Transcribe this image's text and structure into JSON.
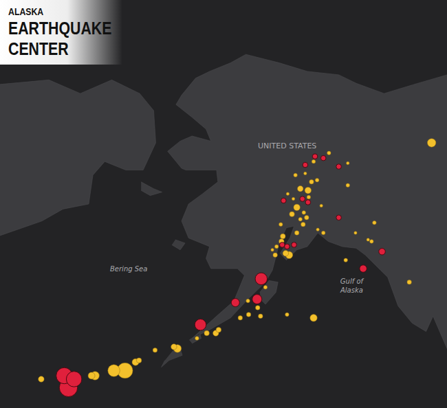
{
  "chart_data": {
    "type": "bubble",
    "logo": [
      "ALASKA",
      "EARTHQUAKE",
      "CENTER"
    ],
    "annotations": [
      {
        "lines": [
          "UNITED STATES"
        ],
        "x": -150.9,
        "y": 65.9
      },
      {
        "lines": [
          "Bering Sea"
        ],
        "x": -173.6,
        "y": 58.7
      },
      {
        "lines": [
          "Gulf of",
          "Alaska"
        ],
        "x": -141.6,
        "y": 57.7
      }
    ],
    "xlim": [
      -192,
      -128
    ],
    "ylim": [
      50.5,
      74.5
    ],
    "xticks": [],
    "yticks": [],
    "tick_labels": false,
    "grid": false,
    "series": [
      {
        "type": "area",
        "color": "#3c3c3f",
        "x": [
          -125,
          -128,
          -133,
          -137,
          -141,
          -143.5,
          -148,
          -152,
          -156.8,
          -159,
          -162,
          -164,
          -166,
          -166.8,
          -164.5,
          -162.5,
          -161.8,
          -164.5,
          -166.2,
          -168,
          -166,
          -165.4,
          -161,
          -160.8,
          -163,
          -165,
          -166,
          -165,
          -162,
          -162.5,
          -161.8,
          -158,
          -157,
          -158.5,
          -161,
          -163.5,
          -164.5,
          -162,
          -159,
          -156.5,
          -154,
          -153,
          -152,
          -151,
          -149.9,
          -150.5,
          -151.9,
          -151,
          -149.5,
          -148,
          -146.5,
          -145,
          -143,
          -141,
          -139.7,
          -137.5,
          -136.5,
          -135,
          -133,
          -131,
          -130,
          -128,
          -125,
          null,
          -154.8,
          -153.5,
          -152.2,
          -152.5,
          -154,
          -154.7,
          null,
          -193,
          -185,
          -180.5,
          -176,
          -172,
          -170,
          -169.7,
          -171.5,
          -174,
          -177,
          -178.7,
          -179.3,
          -183,
          -186,
          -193,
          null,
          -171.8,
          -170,
          -168.8,
          -170.5,
          -171.8,
          null,
          -166.9,
          -165.5,
          -166.2,
          -167.4,
          null,
          -164.9,
          -163.4,
          -163.2,
          -164.5,
          null,
          -167.2,
          -166.2,
          -165.9,
          -167.8,
          -168.9,
          -168.4
        ],
        "y": [
          70.2,
          70.1,
          69.5,
          69,
          69.6,
          70.1,
          70.3,
          70.8,
          71.3,
          70.8,
          70.3,
          69.9,
          68.9,
          68.35,
          67.6,
          66.9,
          66.2,
          66.5,
          66.2,
          65.6,
          64.6,
          64.5,
          64.5,
          63.8,
          63.1,
          62.5,
          61.5,
          60.5,
          60,
          59.3,
          58.7,
          58.7,
          58.3,
          56.8,
          55.9,
          55,
          54.6,
          55.1,
          55.8,
          56.9,
          57.9,
          58.6,
          60.2,
          61.1,
          61.2,
          60.5,
          59.6,
          59.2,
          59.8,
          60,
          60.8,
          60.3,
          60,
          59.9,
          59.5,
          58.6,
          58.2,
          56.5,
          55.5,
          55,
          55.9,
          54,
          52,
          null,
          57.3,
          58,
          57.9,
          57.3,
          56.6,
          56.9,
          null,
          69.5,
          69.8,
          69,
          69.8,
          69,
          68,
          66.1,
          64.5,
          64.5,
          65,
          64.2,
          62.5,
          62.2,
          61.5,
          60.5,
          null,
          63.8,
          63.4,
          63.2,
          63,
          63.3,
          null,
          60.4,
          60.2,
          59.8,
          60.1,
          null,
          54.5,
          54.9,
          54.6,
          54.3,
          null,
          53.9,
          54,
          53.6,
          53.3,
          52.9,
          53.3
        ]
      },
      {
        "type": "bubble",
        "color": "#f3c02c",
        "x": [
          -174.1,
          -175.7,
          -178.4,
          -178.9,
          -186.1,
          -172.6,
          -172.1,
          -166.6,
          -167.1,
          -169.8,
          -162.4,
          -161.1,
          -160.7,
          -163.8,
          -157.6,
          -156.4,
          -154.7,
          -147.1,
          -150.9,
          -155.1,
          -154,
          -156.5,
          -133.4,
          -130.2,
          -142.5,
          -138.4,
          -138.8,
          -142.2,
          -149,
          -147.9,
          -149.5,
          -150.2,
          -150.6,
          -151.1,
          -151.7,
          -151.5,
          -149.5,
          -148.6,
          -147.4,
          -146.6,
          -147.1,
          -144.9,
          -142.2,
          -149.7,
          -152.6,
          -148.1,
          -145.7,
          -141.1,
          -139.3,
          -148.5,
          -149,
          -150,
          -148.3,
          -147.8,
          -146,
          -150.8,
          -151.8,
          -152.4,
          -153,
          -146.5
        ],
        "y": [
          52.7,
          52.7,
          52.4,
          52.4,
          52.2,
          53.2,
          53.3,
          54,
          54.1,
          53.9,
          54.9,
          54.9,
          55.1,
          54.6,
          55.8,
          56,
          55.9,
          55.8,
          56,
          56.4,
          57.6,
          56.8,
          57.9,
          66.1,
          59.2,
          61.4,
          60.3,
          63.6,
          63.4,
          63.3,
          62.3,
          61.9,
          59.5,
          59.6,
          60.3,
          60.6,
          60.8,
          61.3,
          63.8,
          63.9,
          65,
          65.5,
          64.9,
          64.2,
          59.5,
          61.7,
          60.8,
          60.8,
          60.4,
          62,
          61.6,
          62.8,
          64.3,
          62.9,
          62.4,
          63.1,
          61.3,
          60,
          59.8,
          61
        ],
        "magnitude": [
          6,
          5,
          4,
          3.5,
          3.2,
          3.5,
          3,
          3.8,
          3.2,
          2.8,
          3,
          3.2,
          3,
          2.6,
          2.8,
          2.8,
          2.8,
          3.6,
          2.6,
          2.8,
          2.6,
          2.6,
          2.8,
          4,
          2.6,
          2.6,
          2.6,
          2.6,
          3.2,
          3.4,
          3.4,
          3,
          3.6,
          3.2,
          3,
          3,
          2.8,
          2.8,
          2.8,
          2.6,
          2.6,
          2.6,
          2.4,
          2.6,
          2.8,
          2.8,
          2.6,
          2.4,
          2.4,
          2.6,
          2.6,
          2.4,
          2.4,
          2.6,
          2.4,
          2.4,
          2.6,
          2.6,
          2.4,
          2.4
        ]
      },
      {
        "type": "bubble",
        "color": "#e0203c",
        "x": [
          -182.2,
          -182.8,
          -181.4,
          -163.3,
          -154.6,
          -155.2,
          -158.3,
          -140,
          -137.3,
          -146.9,
          -148.3,
          -143.5,
          -151.4,
          -147.9,
          -143.5,
          -151.6,
          -149.9,
          -148.7,
          -145.7,
          -150.9
        ],
        "y": [
          51.7,
          52.4,
          52.2,
          55.4,
          58.1,
          56.9,
          56.7,
          58.7,
          59.7,
          65.3,
          64.8,
          64.7,
          62.7,
          62.6,
          61.7,
          60.1,
          60.1,
          62.8,
          65.2,
          60
        ],
        "magnitude": [
          6.8,
          6.2,
          6,
          4.8,
          5,
          4.3,
          3.9,
          3.6,
          3.4,
          3,
          3,
          3,
          3,
          3,
          3,
          3,
          3,
          3,
          3,
          3
        ]
      }
    ]
  }
}
